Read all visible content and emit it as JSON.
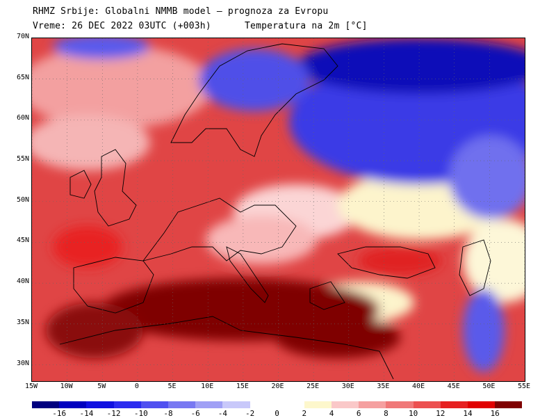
{
  "header": {
    "line1": "RHMZ Srbije: Globalni NMMB model — prognoza za Evropu",
    "line2": "Vreme: 26 DEC 2022 03UTC (+003h)      Temperatura na 2m [°C]"
  },
  "map": {
    "lat_labels": [
      "70N",
      "65N",
      "60N",
      "55N",
      "50N",
      "45N",
      "40N",
      "35N",
      "30N"
    ],
    "lat_values": [
      70,
      65,
      60,
      55,
      50,
      45,
      40,
      35,
      30
    ],
    "lon_labels": [
      "15W",
      "10W",
      "5W",
      "0",
      "5E",
      "10E",
      "15E",
      "20E",
      "25E",
      "30E",
      "35E",
      "40E",
      "45E",
      "50E",
      "55E"
    ],
    "lon_values": [
      -15,
      -10,
      -5,
      0,
      5,
      10,
      15,
      20,
      25,
      30,
      35,
      40,
      45,
      50,
      55
    ],
    "lat_range": [
      28,
      70
    ],
    "lon_range": [
      -15,
      55
    ]
  },
  "colorbar": {
    "labels": [
      "-16",
      "-14",
      "-12",
      "-10",
      "-8",
      "-6",
      "-4",
      "-2",
      "0",
      "2",
      "4",
      "6",
      "8",
      "10",
      "12",
      "14",
      "16"
    ],
    "colors": [
      "#00007f",
      "#0000bf",
      "#1010e0",
      "#2b2bef",
      "#5050f0",
      "#7878f2",
      "#a0a0f5",
      "#c8c8fa",
      "#ffffff",
      "#fdf7cc",
      "#fac8c8",
      "#f5a0a0",
      "#f07878",
      "#ec5050",
      "#e62020",
      "#e00000",
      "#7f0000"
    ]
  }
}
